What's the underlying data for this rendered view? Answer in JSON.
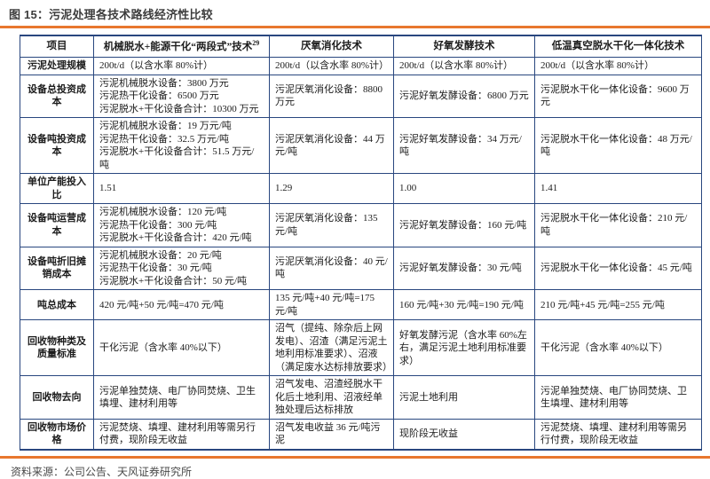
{
  "page": {
    "title": "图 15：污泥处理各技术路线经济性比较",
    "source": "资料来源：公司公告、天风证券研究所"
  },
  "colors": {
    "accent_orange": "#E8772E",
    "table_border_navy": "#29477F"
  },
  "table": {
    "headers": [
      "项目",
      "机械脱水+能源干化“两段式”技术",
      "厌氧消化技术",
      "好氧发酵技术",
      "低温真空脱水干化一体化技术"
    ],
    "header_superscript": "29",
    "rows": [
      {
        "label": "污泥处理规模",
        "cells": [
          "200t/d（以含水率 80%计）",
          "200t/d（以含水率 80%计）",
          "200t/d（以含水率 80%计）",
          "200t/d（以含水率 80%计）"
        ]
      },
      {
        "label": "设备总投资成本",
        "cells": [
          "污泥机械脱水设备：3800 万元\n污泥热干化设备：6500 万元\n污泥脱水+干化设备合计：10300 万元",
          "污泥厌氧消化设备：8800 万元",
          "污泥好氧发酵设备：6800 万元",
          "污泥脱水干化一体化设备：9600 万元"
        ]
      },
      {
        "label": "设备吨投资成本",
        "cells": [
          "污泥机械脱水设备：19 万元/吨\n污泥热干化设备：32.5 万元/吨\n污泥脱水+干化设备合计：51.5 万元/吨",
          "污泥厌氧消化设备：44 万元/吨",
          "污泥好氧发酵设备：34 万元/吨",
          "污泥脱水干化一体化设备：48 万元/吨"
        ]
      },
      {
        "label": "单位产能投入比",
        "cells": [
          "1.51",
          "1.29",
          "1.00",
          "1.41"
        ]
      },
      {
        "label": "设备吨运营成本",
        "cells": [
          "污泥机械脱水设备：120 元/吨\n污泥热干化设备：300 元/吨\n污泥脱水+干化设备合计：420 元/吨",
          "污泥厌氧消化设备：135 元/吨",
          "污泥好氧发酵设备：160 元/吨",
          "污泥脱水干化一体化设备：210 元/吨"
        ]
      },
      {
        "label": "设备吨折旧摊销成本",
        "cells": [
          "污泥机械脱水设备：20 元/吨\n污泥热干化设备：30 元/吨\n污泥脱水+干化设备合计：50 元/吨",
          "污泥厌氧消化设备：40 元/吨",
          "污泥好氧发酵设备：30 元/吨",
          "污泥脱水干化一体化设备：45 元/吨"
        ]
      },
      {
        "label": "吨总成本",
        "cells": [
          "420 元/吨+50 元/吨=470 元/吨",
          "135 元/吨+40 元/吨=175 元/吨",
          "160 元/吨+30 元/吨=190 元/吨",
          "210 元/吨+45 元/吨=255 元/吨"
        ]
      },
      {
        "label": "回收物种类及质量标准",
        "cells": [
          "干化污泥（含水率 40%以下）",
          "沼气（提纯、除杂后上网发电）、沼渣（满足污泥土地利用标准要求）、沼液（满足废水达标排放要求）",
          "好氧发酵污泥（含水率 60%左右，满足污泥土地利用标准要求）",
          "干化污泥（含水率 40%以下）"
        ]
      },
      {
        "label": "回收物去向",
        "cells": [
          "污泥单独焚烧、电厂协同焚烧、卫生填埋、建材利用等",
          "沼气发电、沼渣经脱水干化后土地利用、沼液经单独处理后达标排放",
          "污泥土地利用",
          "污泥单独焚烧、电厂协同焚烧、卫生填埋、建材利用等"
        ]
      },
      {
        "label": "回收物市场价格",
        "cells": [
          "污泥焚烧、填埋、建材利用等需另行付费，现阶段无收益",
          "沼气发电收益 36 元/吨污泥",
          "现阶段无收益",
          "污泥焚烧、填埋、建材利用等需另行付费，现阶段无收益"
        ]
      }
    ]
  }
}
